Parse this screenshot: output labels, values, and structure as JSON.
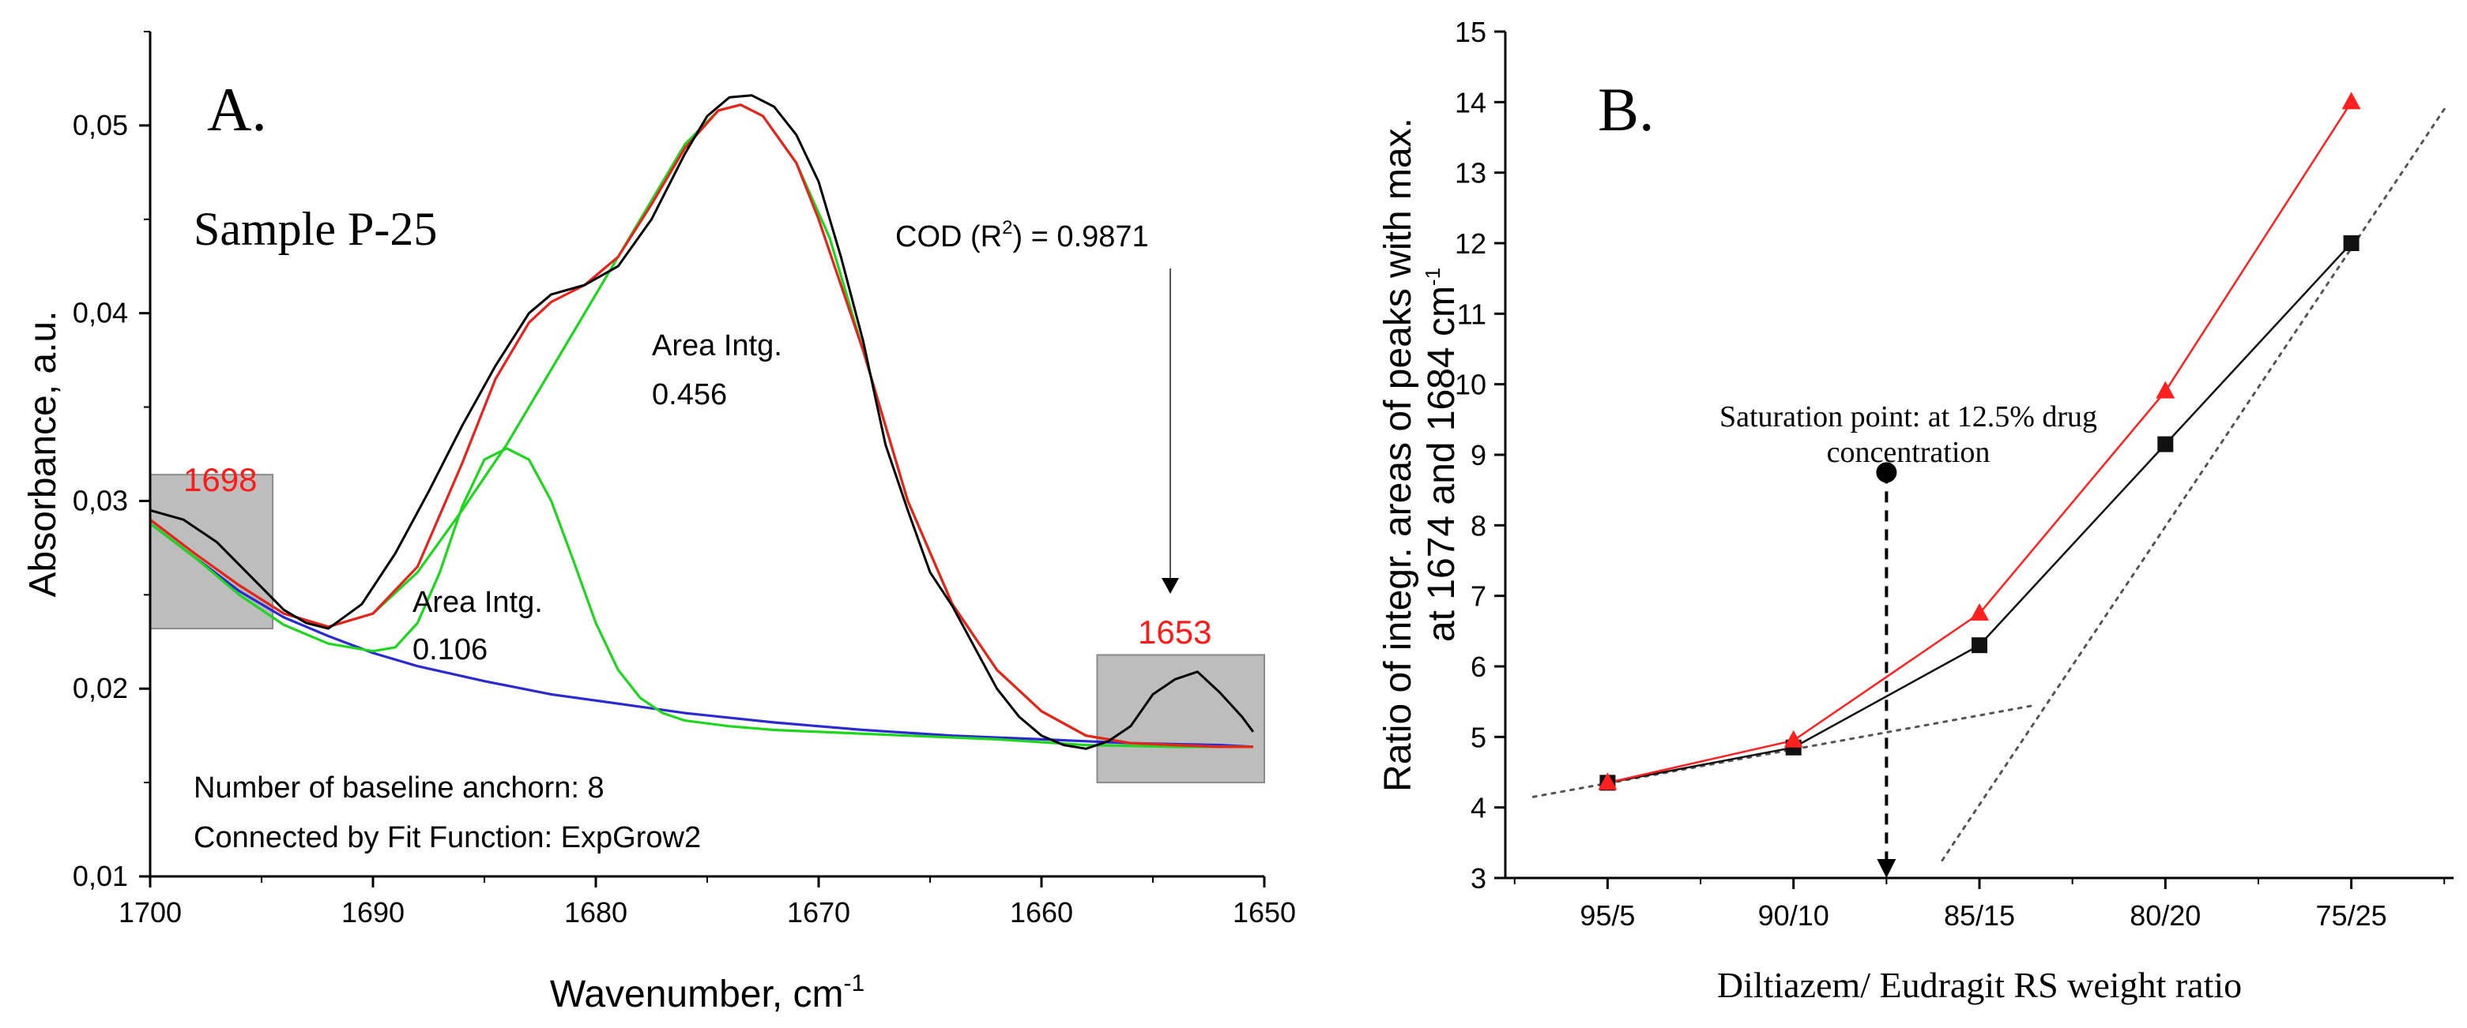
{
  "chart_data": [
    {
      "type": "line",
      "panel_label": "A.",
      "sample_label": "Sample P-25",
      "xlabel": "Wavenumber, cm",
      "xlabel_sup": "-1",
      "ylabel": "Absorbance, a.u.",
      "xlim": [
        1700,
        1650
      ],
      "ylim": [
        0.01,
        0.055
      ],
      "x_ticks": [
        1700,
        1690,
        1680,
        1670,
        1660,
        1650
      ],
      "x_tick_labels": [
        "1700",
        "1690",
        "1680",
        "1670",
        "1660",
        "1650"
      ],
      "y_ticks": [
        0.01,
        0.02,
        0.03,
        0.04,
        0.05
      ],
      "y_tick_labels": [
        "0,01",
        "0,02",
        "0,03",
        "0,04",
        "0,05"
      ],
      "annotations": {
        "cod_prefix": "COD (R",
        "cod_sup": "2",
        "cod_suffix": ") = 0.9871",
        "peak1_line1": "Area Intg.",
        "peak1_line2": "0.456",
        "peak2_line1": "Area Intg.",
        "peak2_line2": "0.106",
        "note_line1": "Number of baseline anchorn: 8",
        "note_line2": "Connected by Fit Function: ExpGrow2",
        "box_left_label": "1698",
        "box_right_label": "1653"
      },
      "boxes": [
        {
          "name": "left",
          "x_range": [
            1700,
            1694.5
          ],
          "y_range": [
            0.0232,
            0.0314
          ]
        },
        {
          "name": "right",
          "x_range": [
            1657.5,
            1650
          ],
          "y_range": [
            0.015,
            0.0218
          ]
        }
      ],
      "colors": {
        "measured": "#000000",
        "fit": "#e8231d",
        "component": "#1fd61f",
        "baseline": "#2a2ad0",
        "box": "#bdbdbd"
      },
      "series": [
        {
          "name": "measured",
          "x": [
            1700,
            1698.5,
            1697,
            1695.5,
            1694,
            1693,
            1692,
            1690.5,
            1689,
            1687.5,
            1686,
            1684.5,
            1683,
            1682,
            1680.5,
            1679,
            1677.5,
            1676,
            1675,
            1674,
            1673,
            1672,
            1671,
            1670,
            1669,
            1668,
            1667,
            1666,
            1665,
            1664,
            1663,
            1662,
            1661,
            1660,
            1659,
            1658,
            1657,
            1656,
            1655,
            1654,
            1653,
            1652,
            1651,
            1650.5
          ],
          "y": [
            0.0295,
            0.029,
            0.0278,
            0.026,
            0.0242,
            0.0235,
            0.0232,
            0.0245,
            0.0272,
            0.0305,
            0.034,
            0.0372,
            0.04,
            0.041,
            0.0415,
            0.0425,
            0.045,
            0.0485,
            0.0505,
            0.0515,
            0.0516,
            0.051,
            0.0495,
            0.047,
            0.043,
            0.0385,
            0.033,
            0.0295,
            0.0262,
            0.0244,
            0.0222,
            0.02,
            0.0185,
            0.0175,
            0.017,
            0.0168,
            0.0172,
            0.018,
            0.0197,
            0.0205,
            0.0209,
            0.0198,
            0.0185,
            0.0177
          ]
        },
        {
          "name": "fit",
          "x": [
            1700,
            1698,
            1696,
            1694,
            1692,
            1690,
            1688,
            1686,
            1684.5,
            1683,
            1682,
            1680.5,
            1679,
            1677.5,
            1676,
            1674.5,
            1673.5,
            1672.5,
            1671,
            1670,
            1668,
            1666,
            1664,
            1662,
            1660,
            1658,
            1656,
            1654,
            1652,
            1650.5
          ],
          "y": [
            0.029,
            0.0272,
            0.0255,
            0.024,
            0.0233,
            0.024,
            0.0265,
            0.032,
            0.0365,
            0.0395,
            0.0406,
            0.0415,
            0.043,
            0.0458,
            0.0488,
            0.0508,
            0.0511,
            0.0505,
            0.048,
            0.045,
            0.038,
            0.03,
            0.0245,
            0.021,
            0.0188,
            0.0175,
            0.0171,
            0.017,
            0.0169,
            0.0169
          ]
        },
        {
          "name": "component-1674",
          "x": [
            1700,
            1698,
            1696,
            1694,
            1692,
            1690,
            1688,
            1686,
            1684,
            1682,
            1680,
            1678,
            1676,
            1674.5,
            1673.5,
            1672.5,
            1671,
            1669.5,
            1668,
            1666,
            1664,
            1662,
            1660,
            1658,
            1656,
            1654,
            1652,
            1650.5
          ],
          "y": [
            0.029,
            0.0272,
            0.0255,
            0.024,
            0.0233,
            0.024,
            0.0262,
            0.0295,
            0.033,
            0.037,
            0.041,
            0.045,
            0.049,
            0.0508,
            0.0511,
            0.0505,
            0.048,
            0.044,
            0.038,
            0.03,
            0.0245,
            0.021,
            0.0188,
            0.0175,
            0.0171,
            0.017,
            0.0169,
            0.0169
          ]
        },
        {
          "name": "component-1684",
          "x": [
            1700,
            1698,
            1696,
            1694,
            1692,
            1690,
            1689,
            1688,
            1687,
            1686,
            1685,
            1684,
            1683,
            1682,
            1681,
            1680,
            1679,
            1678,
            1677,
            1676,
            1674,
            1672,
            1670,
            1666,
            1662,
            1658,
            1654,
            1650.5
          ],
          "y": [
            0.0288,
            0.027,
            0.025,
            0.0234,
            0.0224,
            0.022,
            0.0222,
            0.0235,
            0.0262,
            0.0297,
            0.0322,
            0.0328,
            0.0322,
            0.03,
            0.0268,
            0.0235,
            0.021,
            0.0195,
            0.0187,
            0.0183,
            0.018,
            0.0178,
            0.0177,
            0.0175,
            0.0173,
            0.017,
            0.0169,
            0.0169
          ]
        },
        {
          "name": "baseline",
          "x": [
            1700,
            1698,
            1696,
            1694,
            1692,
            1690,
            1688,
            1685,
            1682,
            1679,
            1676,
            1672,
            1668,
            1664,
            1660,
            1656,
            1652,
            1650.5
          ],
          "y": [
            0.0288,
            0.027,
            0.0252,
            0.0238,
            0.0228,
            0.0219,
            0.0212,
            0.0204,
            0.0197,
            0.0192,
            0.0187,
            0.0182,
            0.0178,
            0.0175,
            0.0173,
            0.0171,
            0.017,
            0.0169
          ]
        }
      ]
    },
    {
      "type": "line",
      "panel_label": "B.",
      "xlabel": "Diltiazem/ Eudragit RS weight ratio",
      "ylabel_line1": "Ratio of integr. areas of peaks with max.",
      "ylabel_line2_prefix": "at 1674 and 1684 cm",
      "ylabel_line2_sup": "-1",
      "categories": [
        "95/5",
        "90/10",
        "85/15",
        "80/20",
        "75/25"
      ],
      "xlim": [
        -0.55,
        4.55
      ],
      "ylim": [
        3,
        15
      ],
      "y_ticks": [
        3,
        4,
        5,
        6,
        7,
        8,
        9,
        10,
        11,
        12,
        13,
        14,
        15
      ],
      "colors": {
        "black_series": "#111111",
        "red_series": "#ff2020",
        "trend": "#555555"
      },
      "series": [
        {
          "name": "black-squares",
          "marker": "square",
          "values": [
            4.35,
            4.85,
            6.3,
            9.15,
            12.0
          ]
        },
        {
          "name": "red-triangles",
          "marker": "triangle",
          "values": [
            4.35,
            4.95,
            6.75,
            9.9,
            14.0
          ]
        }
      ],
      "trend_lines": [
        {
          "name": "low-trend",
          "x": [
            -0.4,
            2.3
          ],
          "y": [
            4.15,
            5.45
          ]
        },
        {
          "name": "high-trend",
          "x": [
            1.8,
            4.5
          ],
          "y": [
            3.25,
            13.9
          ]
        }
      ],
      "annotation": {
        "line1": "Saturation point: at 12.5% drug",
        "line2": "concentration",
        "x": 1.5,
        "y_top": 8.75,
        "y_bottom": 3.0
      }
    }
  ]
}
